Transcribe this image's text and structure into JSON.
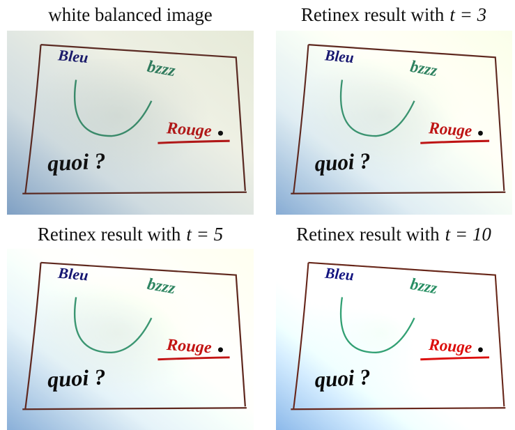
{
  "panels": [
    {
      "caption": "white balanced image"
    },
    {
      "caption": "Retinex result with",
      "math": "t = 3"
    },
    {
      "caption": "Retinex result with",
      "math": "t = 5"
    },
    {
      "caption": "Retinex result with",
      "math": "t = 10"
    }
  ],
  "photo_text": {
    "blue": "Bleu",
    "green": "bzzz",
    "red": "Rouge",
    "black": "quoi ?"
  }
}
